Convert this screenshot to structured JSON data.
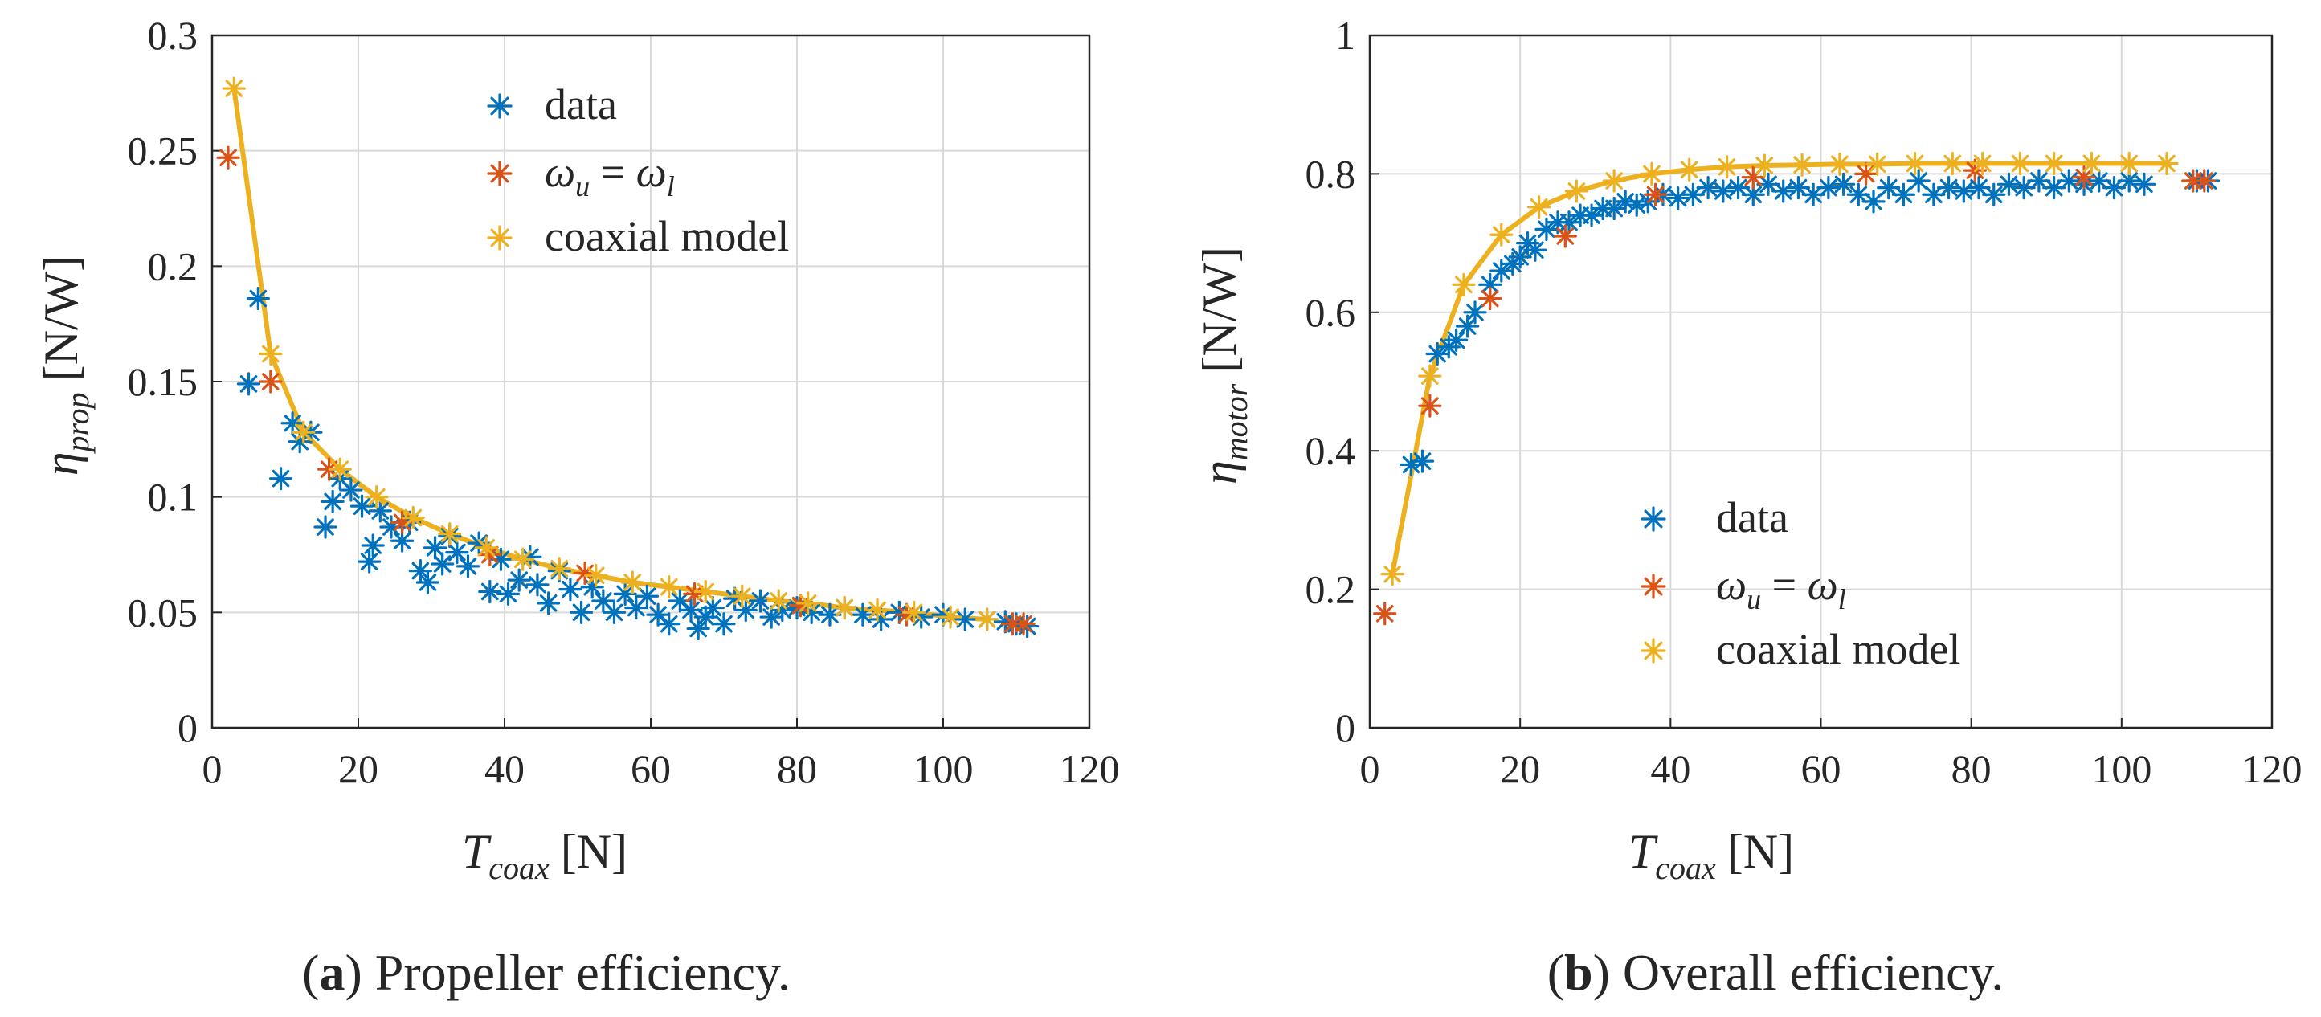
{
  "figure": {
    "caption_a_letter": "a",
    "caption_a_text": " Propeller efficiency.",
    "caption_b_letter": "b",
    "caption_b_text": " Overall efficiency."
  },
  "colors": {
    "data": "#0072BD",
    "equal_speed": "#D95319",
    "model": "#EDB120",
    "grid": "#d9d9d9",
    "axis": "#262626"
  },
  "chart_data": [
    {
      "type": "scatter",
      "title": "",
      "xlabel": "T_coax [N]",
      "ylabel": "η_prop [N/W]",
      "xlim": [
        0,
        120
      ],
      "ylim": [
        0,
        0.3
      ],
      "xticks": [
        0,
        20,
        40,
        60,
        80,
        100,
        120
      ],
      "yticks": [
        0,
        0.05,
        0.1,
        0.15,
        0.2,
        0.25,
        0.3
      ],
      "ytick_labels": [
        "0",
        "0.05",
        "0.1",
        "0.15",
        "0.2",
        "0.25",
        "0.3"
      ],
      "grid": true,
      "legend": [
        "data",
        "ω_u = ω_l",
        "coaxial model"
      ],
      "legend_position": "top-center",
      "series": [
        {
          "name": "data",
          "marker": "asterisk",
          "x": [
            5.0,
            6.3,
            9.4,
            11.0,
            12.0,
            13.5,
            15.5,
            16.5,
            17.5,
            19.0,
            20.5,
            21.5,
            22.0,
            23.0,
            24.5,
            26.0,
            27.0,
            28.5,
            29.5,
            30.5,
            31.5,
            32.5,
            33.5,
            35.0,
            36.5,
            38.0,
            39.5,
            40.5,
            42.0,
            43.5,
            44.5,
            46.0,
            47.5,
            49.0,
            50.5,
            52.0,
            53.5,
            55.0,
            56.5,
            58.0,
            59.5,
            61.0,
            62.5,
            64.0,
            65.5,
            66.5,
            67.5,
            68.5,
            70.0,
            71.5,
            73.0,
            75.0,
            76.5,
            78.0,
            80.0,
            82.0,
            84.5,
            86.5,
            89.0,
            91.5,
            94.0,
            97.0,
            100.0,
            103.0,
            106.0,
            108.5,
            110.0,
            111.5
          ],
          "y": [
            0.149,
            0.186,
            0.108,
            0.132,
            0.124,
            0.128,
            0.087,
            0.098,
            0.108,
            0.103,
            0.096,
            0.072,
            0.079,
            0.094,
            0.087,
            0.081,
            0.089,
            0.068,
            0.063,
            0.078,
            0.071,
            0.083,
            0.076,
            0.07,
            0.08,
            0.059,
            0.073,
            0.058,
            0.064,
            0.074,
            0.062,
            0.054,
            0.068,
            0.06,
            0.05,
            0.061,
            0.055,
            0.05,
            0.058,
            0.052,
            0.057,
            0.049,
            0.045,
            0.055,
            0.051,
            0.043,
            0.048,
            0.052,
            0.045,
            0.056,
            0.051,
            0.055,
            0.048,
            0.051,
            0.052,
            0.05,
            0.049,
            0.052,
            0.049,
            0.047,
            0.05,
            0.048,
            0.049,
            0.047,
            0.047,
            0.046,
            0.045,
            0.044
          ]
        },
        {
          "name": "ω_u = ω_l",
          "marker": "asterisk",
          "x": [
            2.2,
            8.0,
            16.0,
            26.0,
            38.0,
            51.0,
            66.0,
            80.5,
            95.0,
            109.5,
            111.0
          ],
          "y": [
            0.247,
            0.15,
            0.112,
            0.089,
            0.075,
            0.067,
            0.058,
            0.053,
            0.049,
            0.045,
            0.045
          ]
        },
        {
          "name": "coaxial model",
          "marker": "asterisk-line",
          "x": [
            3.0,
            8.0,
            12.5,
            17.5,
            22.5,
            27.5,
            32.5,
            37.5,
            42.5,
            47.5,
            52.5,
            57.5,
            62.5,
            67.5,
            72.5,
            77.5,
            81.5,
            86.5,
            91.0,
            96.0,
            101.0,
            106.0
          ],
          "y": [
            0.277,
            0.162,
            0.128,
            0.112,
            0.1,
            0.091,
            0.084,
            0.078,
            0.073,
            0.069,
            0.066,
            0.063,
            0.061,
            0.059,
            0.057,
            0.055,
            0.054,
            0.052,
            0.051,
            0.05,
            0.048,
            0.047
          ]
        }
      ]
    },
    {
      "type": "scatter",
      "title": "",
      "xlabel": "T_coax [N]",
      "ylabel": "η_motor [N/W]",
      "xlim": [
        0,
        120
      ],
      "ylim": [
        0,
        1
      ],
      "xticks": [
        0,
        20,
        40,
        60,
        80,
        100,
        120
      ],
      "yticks": [
        0,
        0.2,
        0.4,
        0.6,
        0.8,
        1
      ],
      "ytick_labels": [
        "0",
        "0.2",
        "0.4",
        "0.6",
        "0.8",
        "1"
      ],
      "grid": true,
      "legend": [
        "data",
        "ω_u = ω_l",
        "coaxial model"
      ],
      "legend_position": "center",
      "series": [
        {
          "name": "data",
          "marker": "asterisk",
          "x": [
            5.5,
            7.0,
            9.0,
            10.5,
            11.5,
            13.0,
            14.0,
            16.0,
            17.5,
            19.0,
            20.0,
            21.0,
            22.0,
            23.5,
            25.0,
            26.5,
            28.0,
            29.5,
            31.0,
            32.5,
            34.0,
            35.5,
            37.0,
            39.0,
            41.0,
            43.0,
            45.0,
            47.0,
            49.0,
            51.0,
            53.0,
            55.0,
            57.0,
            59.0,
            61.0,
            63.0,
            65.0,
            67.0,
            69.0,
            71.0,
            73.0,
            75.0,
            77.0,
            79.0,
            81.0,
            83.0,
            85.0,
            87.0,
            89.0,
            91.0,
            93.0,
            95.0,
            97.0,
            99.0,
            101.0,
            103.0,
            110.0,
            111.5
          ],
          "y": [
            0.38,
            0.385,
            0.54,
            0.55,
            0.56,
            0.58,
            0.6,
            0.64,
            0.66,
            0.67,
            0.68,
            0.7,
            0.69,
            0.72,
            0.73,
            0.73,
            0.74,
            0.74,
            0.75,
            0.75,
            0.76,
            0.755,
            0.76,
            0.77,
            0.765,
            0.77,
            0.78,
            0.775,
            0.78,
            0.77,
            0.785,
            0.775,
            0.78,
            0.77,
            0.78,
            0.785,
            0.77,
            0.76,
            0.78,
            0.77,
            0.79,
            0.77,
            0.78,
            0.775,
            0.78,
            0.77,
            0.785,
            0.78,
            0.79,
            0.78,
            0.79,
            0.785,
            0.79,
            0.78,
            0.79,
            0.785,
            0.79,
            0.79
          ]
        },
        {
          "name": "ω_u = ω_l",
          "marker": "asterisk",
          "x": [
            2.0,
            8.0,
            16.0,
            26.0,
            38.0,
            51.0,
            66.0,
            80.5,
            95.0,
            109.5,
            111.0
          ],
          "y": [
            0.165,
            0.465,
            0.62,
            0.71,
            0.77,
            0.795,
            0.8,
            0.805,
            0.795,
            0.79,
            0.79
          ]
        },
        {
          "name": "coaxial model",
          "marker": "asterisk-line",
          "x": [
            3.0,
            8.0,
            12.5,
            17.5,
            22.5,
            27.5,
            32.5,
            37.5,
            42.5,
            47.5,
            52.5,
            57.5,
            62.5,
            67.5,
            72.5,
            77.5,
            81.5,
            86.5,
            91.0,
            96.0,
            101.0,
            106.0
          ],
          "y": [
            0.222,
            0.508,
            0.64,
            0.712,
            0.752,
            0.775,
            0.79,
            0.8,
            0.806,
            0.81,
            0.812,
            0.813,
            0.814,
            0.814,
            0.815,
            0.815,
            0.815,
            0.815,
            0.815,
            0.815,
            0.815,
            0.815
          ]
        }
      ]
    }
  ],
  "axis_text": {
    "eta": "η",
    "prop": "prop",
    "motor": "motor",
    "unit_nw": "[N/W]",
    "T": "T",
    "coax": "coax",
    "unit_n": "[N]",
    "leg_data": "data",
    "leg_omega_u": "ω",
    "u_sub": "u",
    "eq": " = ",
    "leg_omega_l": "ω",
    "l_sub": "l",
    "leg_model": "coaxial model"
  }
}
